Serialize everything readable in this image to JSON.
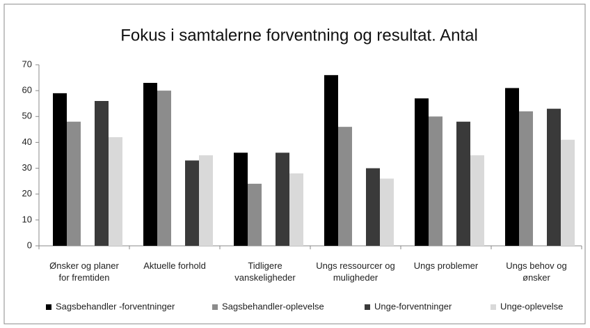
{
  "chart_data": {
    "type": "bar",
    "title": "Fokus i samtalerne forventning og resultat. Antal",
    "categories": [
      "Ønsker og planer for fremtiden",
      "Aktuelle forhold",
      "Tidligere vanskeligheder",
      "Ungs ressourcer og muligheder",
      "Ungs problemer",
      "Ungs behov og ønsker"
    ],
    "series": [
      {
        "name": "Sagsbehandler -forventninger",
        "color": "#000000",
        "values": [
          59,
          63,
          36,
          66,
          57,
          61
        ]
      },
      {
        "name": "Sagsbehandler-oplevelse",
        "color": "#8c8c8c",
        "values": [
          48,
          60,
          24,
          46,
          50,
          52
        ]
      },
      {
        "name": "Unge-forventninger",
        "color": "#3a3a3a",
        "values": [
          56,
          33,
          36,
          30,
          48,
          53
        ]
      },
      {
        "name": "Unge-oplevelse",
        "color": "#d9d9d9",
        "values": [
          42,
          35,
          28,
          26,
          35,
          41
        ]
      }
    ],
    "ylim": [
      0,
      70
    ],
    "yticks": [
      0,
      10,
      20,
      30,
      40,
      50,
      60,
      70
    ],
    "grid": false,
    "legend": "bottom"
  }
}
